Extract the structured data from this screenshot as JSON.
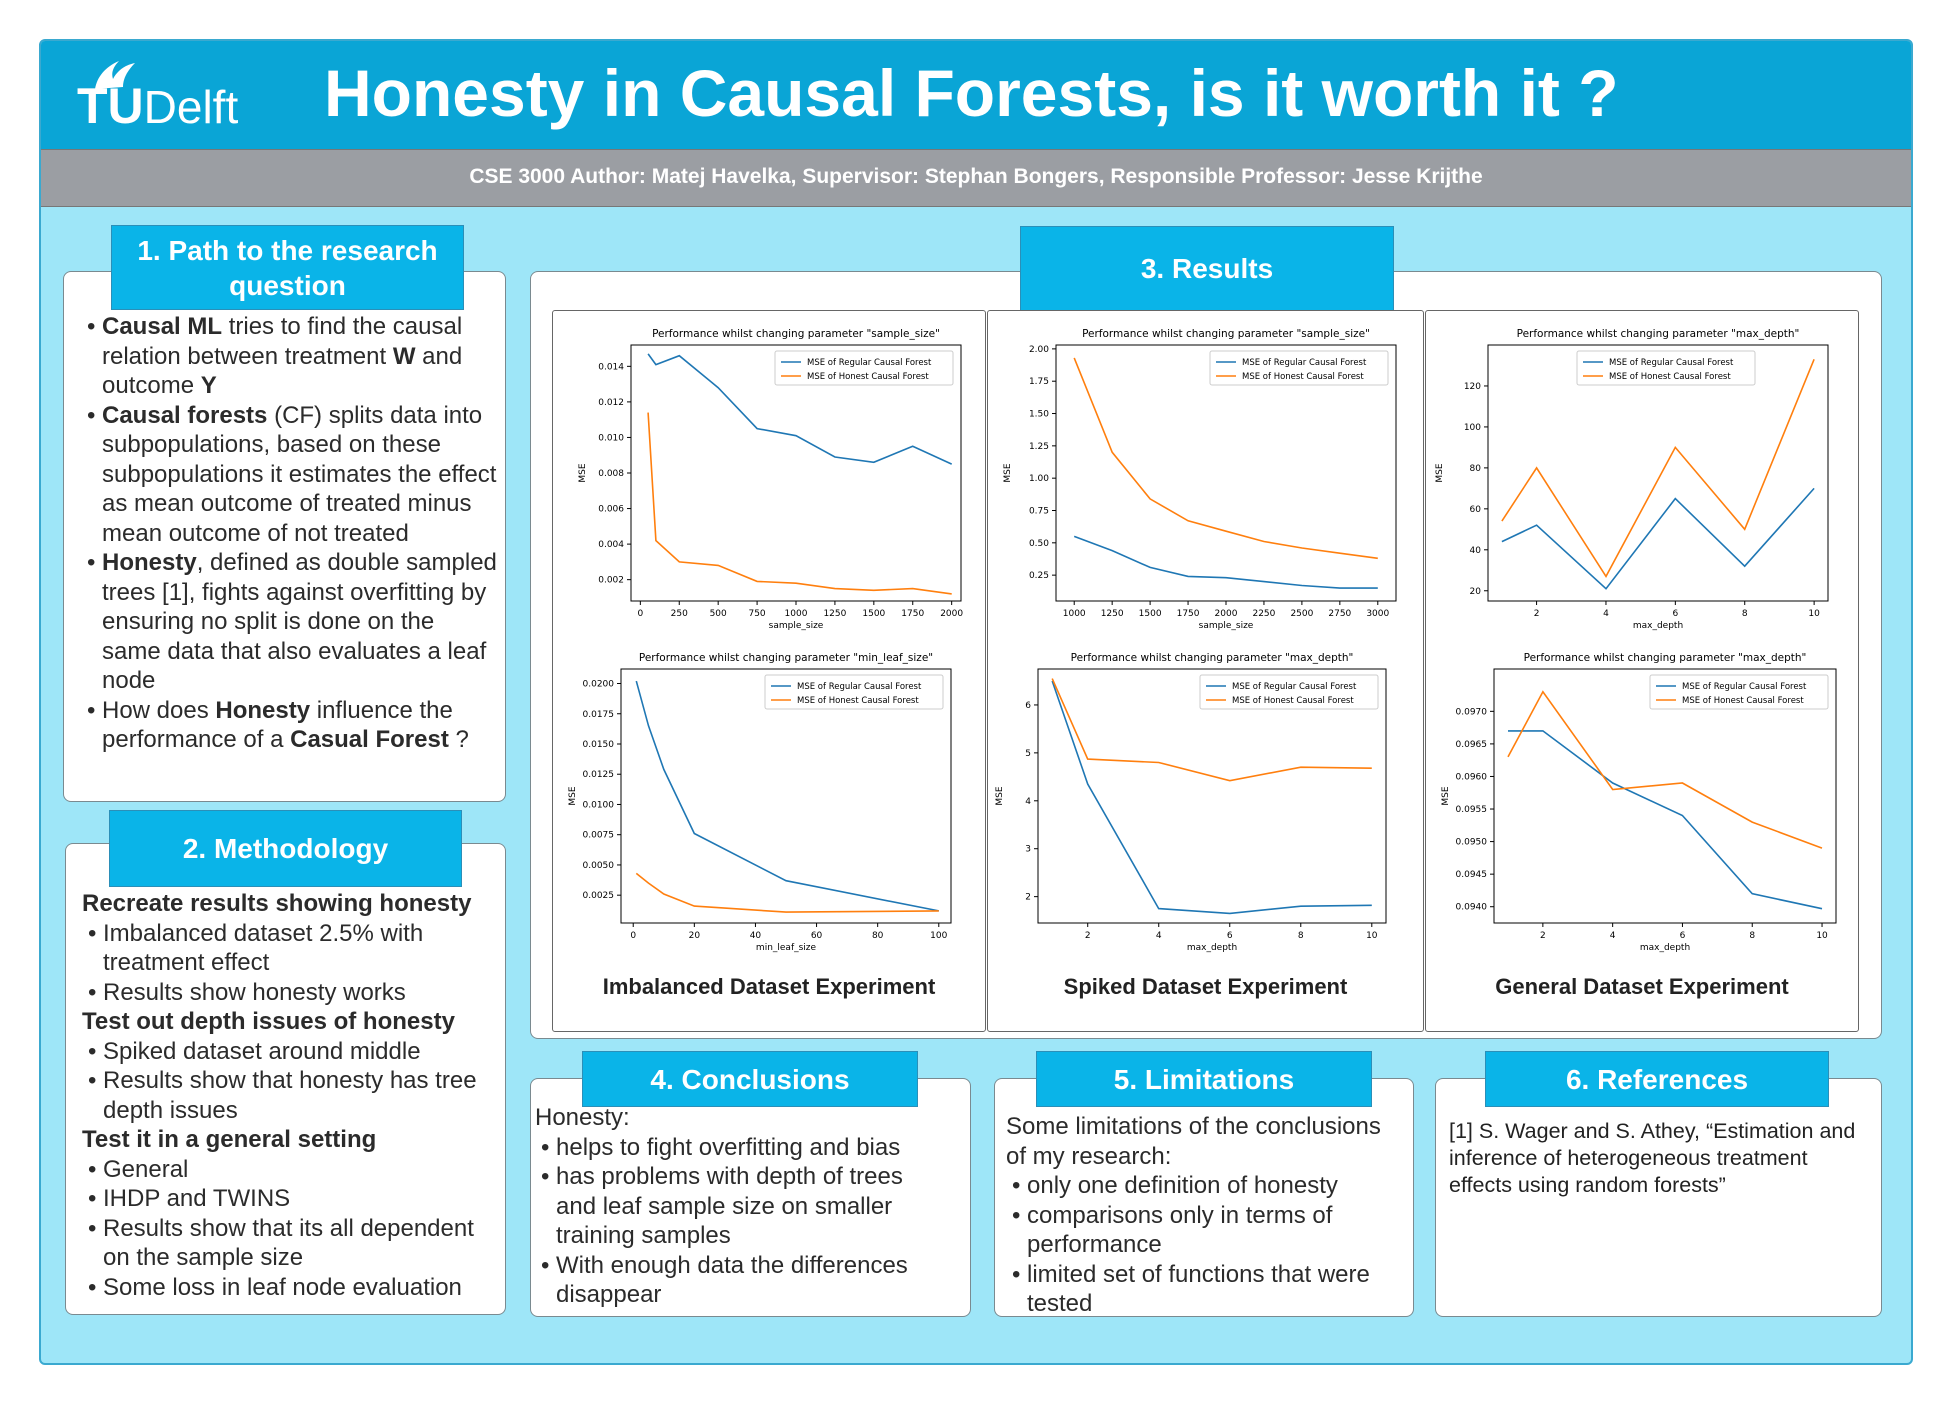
{
  "header": {
    "logo_tu": "TU",
    "logo_delft": "Delft",
    "title": "Honesty in Causal Forests, is it worth it ?",
    "authors": "CSE 3000 Author: Matej Havelka, Supervisor: Stephan Bongers, Responsible Professor: Jesse Krijthe"
  },
  "colors": {
    "header": "#0aa5d6",
    "section_head": "#0ab4e8",
    "background": "#9ee6f8",
    "author_bar": "#9b9ea3",
    "regular_series": "#1f77b4",
    "honest_series": "#ff7f0e"
  },
  "sections": {
    "path": {
      "heading_line1": "1. Path to the research",
      "heading_line2": "question"
    },
    "methodology": {
      "heading": "2. Methodology"
    },
    "results": {
      "heading": "3. Results"
    },
    "conclusions": {
      "heading": "4. Conclusions"
    },
    "limitations": {
      "heading": "5. Limitations"
    },
    "references": {
      "heading": "6. References"
    }
  },
  "path_bullets": {
    "b1_bold1": "Causal ML",
    "b1_t1": " tries to find the causal relation between treatment ",
    "b1_bold2": "W",
    "b1_t2": " and outcome ",
    "b1_bold3": "Y",
    "b2_bold": "Causal forests",
    "b2_t": " (CF) splits data into subpopulations, based on these subpopulations it estimates the effect as mean outcome of treated minus mean outcome of not treated",
    "b3_bold": "Honesty",
    "b3_t": ", defined as double sampled trees [1], fights against overfitting by ensuring no split is done on the same data that also evaluates a leaf node",
    "b4_t1": "How does ",
    "b4_bold1": "Honesty",
    "b4_t2": " influence the performance of a ",
    "b4_bold2": "Casual Forest",
    "b4_t3": " ?"
  },
  "methodology": {
    "g1_head": "Recreate results showing honesty",
    "g1_items": [
      "Imbalanced dataset 2.5% with treatment effect",
      "Results show honesty works"
    ],
    "g2_head": "Test out depth issues of honesty",
    "g2_items": [
      "Spiked dataset around middle",
      "Results show that honesty has tree depth issues"
    ],
    "g3_head": "Test it in a general setting",
    "g3_items": [
      "General",
      "IHDP and TWINS",
      "Results show that its all dependent on the sample size",
      "Some loss in leaf node evaluation"
    ]
  },
  "conclusions": {
    "intro": "Honesty:",
    "items": [
      "helps to fight overfitting and bias",
      "has problems with depth of trees and leaf sample size on smaller training samples",
      "With enough data the differences disappear"
    ]
  },
  "limitations": {
    "intro": "Some limitations of the conclusions of my research:",
    "items": [
      "only one definition of honesty",
      "comparisons only in terms of performance",
      "limited set of functions that were tested"
    ]
  },
  "references": {
    "ref1": "[1] S. Wager and S. Athey, “Estimation and inference of heterogeneous treatment effects using random forests”"
  },
  "experiments": {
    "imbalanced": "Imbalanced Dataset Experiment",
    "spiked": "Spiked Dataset Experiment",
    "general": "General Dataset Experiment"
  },
  "chart_data": [
    {
      "type": "line",
      "title": "Performance whilst changing parameter \"sample_size\"",
      "xlabel": "sample_size",
      "ylabel": "MSE",
      "xlim": [
        -60,
        2060
      ],
      "ylim": [
        0.0008,
        0.0152
      ],
      "xticks": [
        0,
        250,
        500,
        750,
        1000,
        1250,
        1500,
        1750,
        2000
      ],
      "yticks": [
        0.002,
        0.004,
        0.006,
        0.008,
        0.01,
        0.012,
        0.014
      ],
      "ytick_labels": [
        "0.002",
        "0.004",
        "0.006",
        "0.008",
        "0.010",
        "0.012",
        "0.014"
      ],
      "legend": "top-right",
      "series": [
        {
          "name": "MSE of Regular Causal Forest",
          "color": "#1f77b4",
          "x": [
            50,
            100,
            250,
            500,
            750,
            1000,
            1250,
            1500,
            1750,
            2000
          ],
          "y": [
            0.0147,
            0.0141,
            0.0146,
            0.0128,
            0.0105,
            0.0101,
            0.0089,
            0.0086,
            0.0095,
            0.0085
          ]
        },
        {
          "name": "MSE of Honest Causal Forest",
          "color": "#ff7f0e",
          "x": [
            50,
            100,
            250,
            500,
            750,
            1000,
            1250,
            1500,
            1750,
            2000
          ],
          "y": [
            0.0114,
            0.0042,
            0.003,
            0.0028,
            0.0019,
            0.0018,
            0.0015,
            0.0014,
            0.0015,
            0.0012
          ]
        }
      ]
    },
    {
      "type": "line",
      "title": "Performance whilst changing parameter \"sample_size\"",
      "xlabel": "sample_size",
      "ylabel": "MSE",
      "xlim": [
        880,
        3120
      ],
      "ylim": [
        0.05,
        2.03
      ],
      "xticks": [
        1000,
        1250,
        1500,
        1750,
        2000,
        2250,
        2500,
        2750,
        3000
      ],
      "yticks": [
        0.25,
        0.5,
        0.75,
        1.0,
        1.25,
        1.5,
        1.75,
        2.0
      ],
      "ytick_labels": [
        "0.25",
        "0.50",
        "0.75",
        "1.00",
        "1.25",
        "1.50",
        "1.75",
        "2.00"
      ],
      "legend": "top-right",
      "series": [
        {
          "name": "MSE of Regular Causal Forest",
          "color": "#1f77b4",
          "x": [
            1000,
            1250,
            1500,
            1750,
            2000,
            2250,
            2500,
            2750,
            3000
          ],
          "y": [
            0.55,
            0.44,
            0.31,
            0.24,
            0.23,
            0.2,
            0.17,
            0.15,
            0.15
          ]
        },
        {
          "name": "MSE of Honest Causal Forest",
          "color": "#ff7f0e",
          "x": [
            1000,
            1250,
            1500,
            1750,
            2000,
            2250,
            2500,
            2750,
            3000
          ],
          "y": [
            1.93,
            1.2,
            0.84,
            0.67,
            0.59,
            0.51,
            0.46,
            0.42,
            0.38
          ]
        }
      ]
    },
    {
      "type": "line",
      "title": "Performance whilst changing parameter \"max_depth\"",
      "xlabel": "max_depth",
      "ylabel": "MSE",
      "xlim": [
        0.6,
        10.4
      ],
      "ylim": [
        15,
        140
      ],
      "xticks": [
        2,
        4,
        6,
        8,
        10
      ],
      "yticks": [
        20,
        40,
        60,
        80,
        100,
        120
      ],
      "ytick_labels": [
        "20",
        "40",
        "60",
        "80",
        "100",
        "120"
      ],
      "legend": "top-center",
      "series": [
        {
          "name": "MSE of Regular Causal Forest",
          "color": "#1f77b4",
          "x": [
            1,
            2,
            4,
            6,
            8,
            10
          ],
          "y": [
            44,
            52,
            21,
            65,
            32,
            70
          ]
        },
        {
          "name": "MSE of Honest Causal Forest",
          "color": "#ff7f0e",
          "x": [
            1,
            2,
            4,
            6,
            8,
            10
          ],
          "y": [
            54,
            80,
            27,
            90,
            50,
            133
          ]
        }
      ]
    },
    {
      "type": "line",
      "title": "Performance whilst changing parameter \"min_leaf_size\"",
      "xlabel": "min_leaf_size",
      "ylabel": "MSE",
      "xlim": [
        -4,
        104
      ],
      "ylim": [
        0.0002,
        0.0212
      ],
      "xticks": [
        0,
        20,
        40,
        60,
        80,
        100
      ],
      "yticks": [
        0.0025,
        0.005,
        0.0075,
        0.01,
        0.0125,
        0.015,
        0.0175,
        0.02
      ],
      "ytick_labels": [
        "0.0025",
        "0.0050",
        "0.0075",
        "0.0100",
        "0.0125",
        "0.0150",
        "0.0175",
        "0.0200"
      ],
      "legend": "top-right",
      "series": [
        {
          "name": "MSE of Regular Causal Forest",
          "color": "#1f77b4",
          "x": [
            1,
            5,
            10,
            20,
            50,
            100
          ],
          "y": [
            0.0202,
            0.0165,
            0.0129,
            0.0076,
            0.0037,
            0.0012
          ]
        },
        {
          "name": "MSE of Honest Causal Forest",
          "color": "#ff7f0e",
          "x": [
            1,
            5,
            10,
            20,
            50,
            100
          ],
          "y": [
            0.0043,
            0.0035,
            0.0026,
            0.0016,
            0.0011,
            0.0012
          ]
        }
      ]
    },
    {
      "type": "line",
      "title": "Performance whilst changing parameter \"max_depth\"",
      "xlabel": "max_depth",
      "ylabel": "MSE",
      "xlim": [
        0.6,
        10.4
      ],
      "ylim": [
        1.45,
        6.75
      ],
      "xticks": [
        2,
        4,
        6,
        8,
        10
      ],
      "yticks": [
        2,
        3,
        4,
        5,
        6
      ],
      "ytick_labels": [
        "2",
        "3",
        "4",
        "5",
        "6"
      ],
      "legend": "top-right",
      "series": [
        {
          "name": "MSE of Regular Causal Forest",
          "color": "#1f77b4",
          "x": [
            1,
            2,
            4,
            6,
            8,
            10
          ],
          "y": [
            6.5,
            4.35,
            1.75,
            1.65,
            1.8,
            1.82
          ]
        },
        {
          "name": "MSE of Honest Causal Forest",
          "color": "#ff7f0e",
          "x": [
            1,
            2,
            4,
            6,
            8,
            10
          ],
          "y": [
            6.55,
            4.87,
            4.8,
            4.42,
            4.7,
            4.68
          ]
        }
      ]
    },
    {
      "type": "line",
      "title": "Performance whilst changing parameter \"max_depth\"",
      "xlabel": "max_depth",
      "ylabel": "MSE",
      "xlim": [
        0.6,
        10.4
      ],
      "ylim": [
        0.09375,
        0.09765
      ],
      "xticks": [
        2,
        4,
        6,
        8,
        10
      ],
      "yticks": [
        0.094,
        0.0945,
        0.095,
        0.0955,
        0.096,
        0.0965,
        0.097
      ],
      "ytick_labels": [
        "0.0940",
        "0.0945",
        "0.0950",
        "0.0955",
        "0.0960",
        "0.0965",
        "0.0970"
      ],
      "legend": "top-right",
      "series": [
        {
          "name": "MSE of Regular Causal Forest",
          "color": "#1f77b4",
          "x": [
            1,
            2,
            4,
            6,
            8,
            10
          ],
          "y": [
            0.0967,
            0.0967,
            0.0959,
            0.0954,
            0.0942,
            0.09397
          ]
        },
        {
          "name": "MSE of Honest Causal Forest",
          "color": "#ff7f0e",
          "x": [
            1,
            2,
            4,
            6,
            8,
            10
          ],
          "y": [
            0.0963,
            0.0973,
            0.0958,
            0.0959,
            0.0953,
            0.0949
          ]
        }
      ]
    }
  ]
}
